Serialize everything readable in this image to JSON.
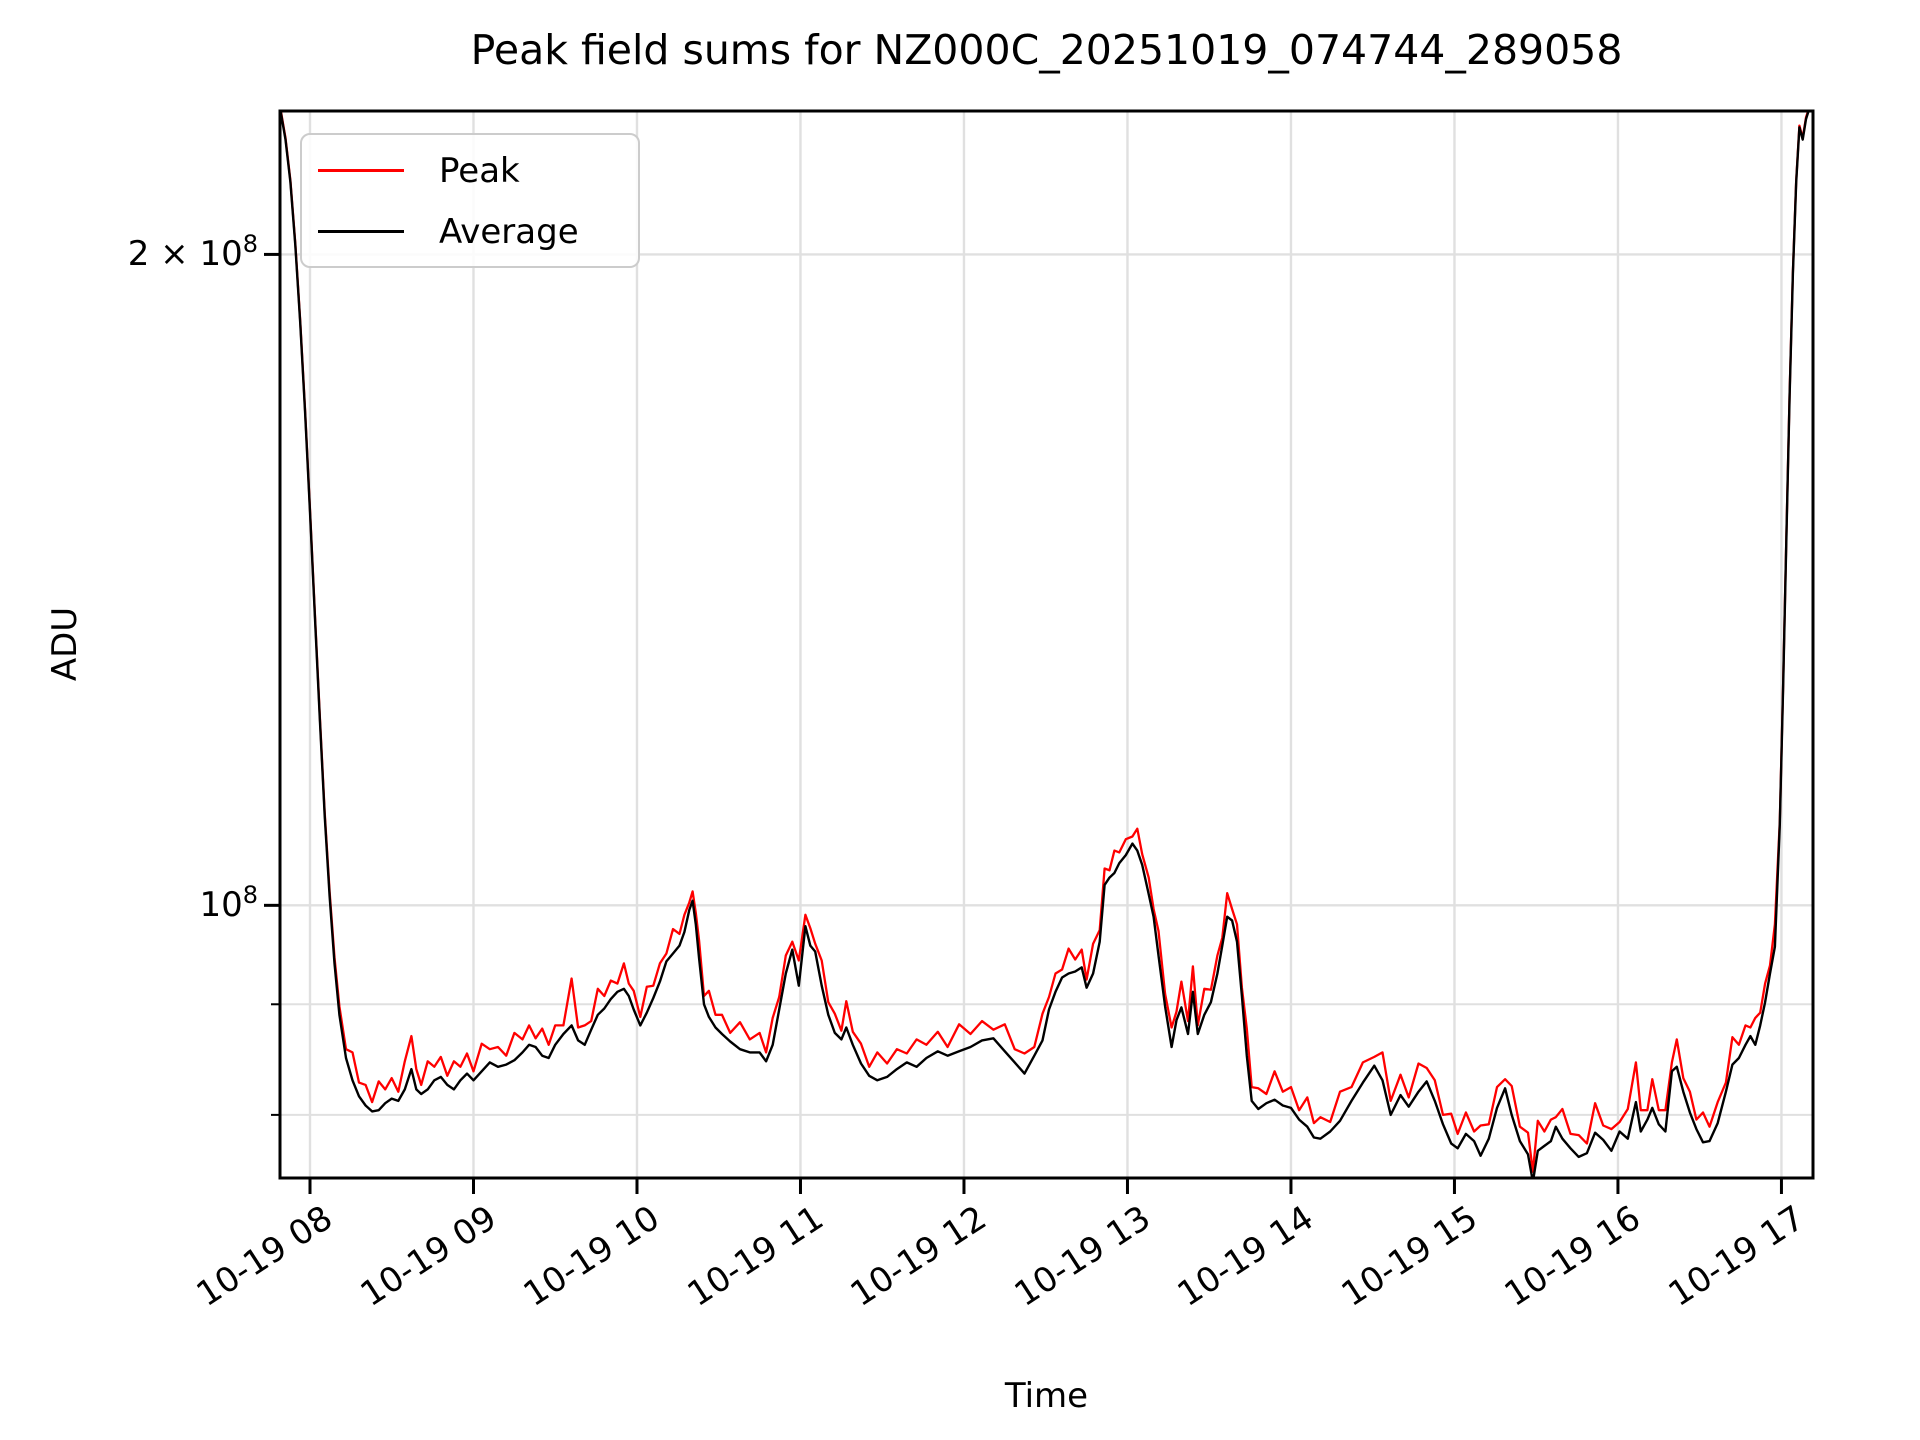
{
  "window": {
    "background": "#ffffff"
  },
  "chart_data": {
    "type": "line",
    "title": "Peak field sums for NZ000C_20251019_074744_289058",
    "xlabel": "Time",
    "ylabel": "ADU",
    "yscale": "log",
    "grid": "both",
    "grid_color": "#e0e0e0",
    "axis_color": "#000000",
    "legend_position": "upper left",
    "xlim_hours": [
      7.8165,
      17.193
    ],
    "ylim": [
      74800000,
      233000000
    ],
    "unit_multiplier": 10000000,
    "x_ticks": [
      {
        "hour": 8,
        "label": "10-19 08"
      },
      {
        "hour": 9,
        "label": "10-19 09"
      },
      {
        "hour": 10,
        "label": "10-19 10"
      },
      {
        "hour": 11,
        "label": "10-19 11"
      },
      {
        "hour": 12,
        "label": "10-19 12"
      },
      {
        "hour": 13,
        "label": "10-19 13"
      },
      {
        "hour": 14,
        "label": "10-19 14"
      },
      {
        "hour": 15,
        "label": "10-19 15"
      },
      {
        "hour": 16,
        "label": "10-19 16"
      },
      {
        "hour": 17,
        "label": "10-19 17"
      }
    ],
    "y_ticks_major": [
      {
        "value": 200000000,
        "mantissa": "2 × 10",
        "exponent": "8"
      },
      {
        "value": 100000000,
        "mantissa": "10",
        "exponent": "8"
      }
    ],
    "y_ticks_minor": [
      90000000,
      80000000
    ],
    "series_meta": [
      {
        "name": "Peak",
        "color": "#ff0000",
        "points_column": 2
      },
      {
        "name": "Average",
        "color": "#000000",
        "points_column": 1
      }
    ],
    "columns": [
      "hour",
      "average_e7_ADU",
      "peak_e7_ADU"
    ],
    "points": [
      [
        7.8,
        23.35,
        23.39
      ],
      [
        7.82,
        23.3,
        23.34
      ],
      [
        7.85,
        22.6,
        22.64
      ],
      [
        7.88,
        21.6,
        21.64
      ],
      [
        7.91,
        20.2,
        20.24
      ],
      [
        7.94,
        18.6,
        18.64
      ],
      [
        7.97,
        16.9,
        16.94
      ],
      [
        8.0,
        15.2,
        15.24
      ],
      [
        8.03,
        13.6,
        13.64
      ],
      [
        8.06,
        12.2,
        12.24
      ],
      [
        8.09,
        11.0,
        11.04
      ],
      [
        8.12,
        10.1,
        10.15
      ],
      [
        8.15,
        9.4,
        9.46
      ],
      [
        8.18,
        8.9,
        8.98
      ],
      [
        8.22,
        8.5,
        8.58
      ],
      [
        8.26,
        8.3,
        8.55
      ],
      [
        8.3,
        8.16,
        8.28
      ],
      [
        8.34,
        8.08,
        8.26
      ],
      [
        8.38,
        8.03,
        8.11
      ],
      [
        8.42,
        8.04,
        8.29
      ],
      [
        8.46,
        8.1,
        8.22
      ],
      [
        8.5,
        8.14,
        8.32
      ],
      [
        8.54,
        8.12,
        8.2
      ],
      [
        8.58,
        8.22,
        8.47
      ],
      [
        8.62,
        8.4,
        8.7
      ],
      [
        8.65,
        8.22,
        8.4
      ],
      [
        8.68,
        8.18,
        8.26
      ],
      [
        8.72,
        8.22,
        8.47
      ],
      [
        8.76,
        8.3,
        8.42
      ],
      [
        8.8,
        8.33,
        8.51
      ],
      [
        8.84,
        8.26,
        8.34
      ],
      [
        8.88,
        8.22,
        8.47
      ],
      [
        8.92,
        8.3,
        8.42
      ],
      [
        8.96,
        8.36,
        8.54
      ],
      [
        9.0,
        8.3,
        8.38
      ],
      [
        9.05,
        8.38,
        8.63
      ],
      [
        9.1,
        8.46,
        8.58
      ],
      [
        9.15,
        8.42,
        8.6
      ],
      [
        9.2,
        8.44,
        8.52
      ],
      [
        9.25,
        8.48,
        8.73
      ],
      [
        9.3,
        8.55,
        8.67
      ],
      [
        9.34,
        8.62,
        8.8
      ],
      [
        9.38,
        8.6,
        8.68
      ],
      [
        9.42,
        8.52,
        8.77
      ],
      [
        9.46,
        8.5,
        8.62
      ],
      [
        9.5,
        8.62,
        8.8
      ],
      [
        9.55,
        8.72,
        8.8
      ],
      [
        9.6,
        8.8,
        9.25
      ],
      [
        9.64,
        8.66,
        8.78
      ],
      [
        9.68,
        8.62,
        8.8
      ],
      [
        9.72,
        8.76,
        8.84
      ],
      [
        9.76,
        8.9,
        9.15
      ],
      [
        9.8,
        8.96,
        9.08
      ],
      [
        9.84,
        9.05,
        9.23
      ],
      [
        9.88,
        9.12,
        9.2
      ],
      [
        9.92,
        9.15,
        9.4
      ],
      [
        9.95,
        9.08,
        9.2
      ],
      [
        9.98,
        8.95,
        9.13
      ],
      [
        10.02,
        8.8,
        8.88
      ],
      [
        10.06,
        8.92,
        9.17
      ],
      [
        10.1,
        9.06,
        9.18
      ],
      [
        10.14,
        9.22,
        9.4
      ],
      [
        10.18,
        9.42,
        9.5
      ],
      [
        10.22,
        9.5,
        9.75
      ],
      [
        10.26,
        9.58,
        9.7
      ],
      [
        10.29,
        9.72,
        9.9
      ],
      [
        10.32,
        9.95,
        10.03
      ],
      [
        10.34,
        10.05,
        10.15
      ],
      [
        10.36,
        9.8,
        9.92
      ],
      [
        10.38,
        9.45,
        9.63
      ],
      [
        10.41,
        9.0,
        9.08
      ],
      [
        10.44,
        8.88,
        9.13
      ],
      [
        10.48,
        8.78,
        8.9
      ],
      [
        10.52,
        8.72,
        8.9
      ],
      [
        10.57,
        8.65,
        8.73
      ],
      [
        10.63,
        8.58,
        8.83
      ],
      [
        10.69,
        8.55,
        8.67
      ],
      [
        10.75,
        8.55,
        8.73
      ],
      [
        10.79,
        8.47,
        8.55
      ],
      [
        10.83,
        8.62,
        8.87
      ],
      [
        10.87,
        8.95,
        9.07
      ],
      [
        10.91,
        9.3,
        9.48
      ],
      [
        10.95,
        9.54,
        9.62
      ],
      [
        10.99,
        9.18,
        9.43
      ],
      [
        11.03,
        9.78,
        9.9
      ],
      [
        11.06,
        9.58,
        9.76
      ],
      [
        11.09,
        9.52,
        9.6
      ],
      [
        11.13,
        9.18,
        9.43
      ],
      [
        11.17,
        8.9,
        9.02
      ],
      [
        11.21,
        8.73,
        8.91
      ],
      [
        11.25,
        8.67,
        8.75
      ],
      [
        11.28,
        8.78,
        9.03
      ],
      [
        11.32,
        8.62,
        8.74
      ],
      [
        11.37,
        8.45,
        8.63
      ],
      [
        11.42,
        8.34,
        8.42
      ],
      [
        11.47,
        8.3,
        8.55
      ],
      [
        11.53,
        8.33,
        8.45
      ],
      [
        11.59,
        8.4,
        8.58
      ],
      [
        11.65,
        8.46,
        8.54
      ],
      [
        11.71,
        8.42,
        8.67
      ],
      [
        11.77,
        8.5,
        8.62
      ],
      [
        11.84,
        8.56,
        8.74
      ],
      [
        11.9,
        8.52,
        8.6
      ],
      [
        11.97,
        8.56,
        8.81
      ],
      [
        12.04,
        8.6,
        8.72
      ],
      [
        12.11,
        8.66,
        8.84
      ],
      [
        12.18,
        8.68,
        8.76
      ],
      [
        12.25,
        8.56,
        8.81
      ],
      [
        12.31,
        8.46,
        8.58
      ],
      [
        12.37,
        8.36,
        8.54
      ],
      [
        12.43,
        8.52,
        8.6
      ],
      [
        12.48,
        8.66,
        8.91
      ],
      [
        12.52,
        8.95,
        9.07
      ],
      [
        12.56,
        9.12,
        9.3
      ],
      [
        12.6,
        9.26,
        9.34
      ],
      [
        12.64,
        9.3,
        9.55
      ],
      [
        12.68,
        9.32,
        9.44
      ],
      [
        12.72,
        9.36,
        9.54
      ],
      [
        12.75,
        9.16,
        9.24
      ],
      [
        12.79,
        9.3,
        9.6
      ],
      [
        12.83,
        9.62,
        9.74
      ],
      [
        12.86,
        10.22,
        10.4
      ],
      [
        12.89,
        10.3,
        10.38
      ],
      [
        12.92,
        10.35,
        10.6
      ],
      [
        12.95,
        10.46,
        10.58
      ],
      [
        12.99,
        10.55,
        10.73
      ],
      [
        13.03,
        10.68,
        10.76
      ],
      [
        13.06,
        10.6,
        10.85
      ],
      [
        13.09,
        10.44,
        10.56
      ],
      [
        13.13,
        10.12,
        10.3
      ],
      [
        13.16,
        9.88,
        9.96
      ],
      [
        13.19,
        9.48,
        9.73
      ],
      [
        13.23,
        8.98,
        9.1
      ],
      [
        13.27,
        8.6,
        8.78
      ],
      [
        13.3,
        8.85,
        8.93
      ],
      [
        13.33,
        8.97,
        9.22
      ],
      [
        13.37,
        8.72,
        8.84
      ],
      [
        13.4,
        9.12,
        9.37
      ],
      [
        13.43,
        8.72,
        8.8
      ],
      [
        13.47,
        8.9,
        9.15
      ],
      [
        13.51,
        9.02,
        9.14
      ],
      [
        13.55,
        9.3,
        9.48
      ],
      [
        13.58,
        9.58,
        9.66
      ],
      [
        13.61,
        9.88,
        10.13
      ],
      [
        13.64,
        9.84,
        9.96
      ],
      [
        13.67,
        9.62,
        9.8
      ],
      [
        13.7,
        9.08,
        9.16
      ],
      [
        13.73,
        8.52,
        8.77
      ],
      [
        13.76,
        8.12,
        8.24
      ],
      [
        13.8,
        8.05,
        8.23
      ],
      [
        13.85,
        8.1,
        8.18
      ],
      [
        13.9,
        8.13,
        8.38
      ],
      [
        13.95,
        8.08,
        8.2
      ],
      [
        14.0,
        8.06,
        8.24
      ],
      [
        14.05,
        7.96,
        8.04
      ],
      [
        14.1,
        7.9,
        8.15
      ],
      [
        14.14,
        7.81,
        7.93
      ],
      [
        14.18,
        7.8,
        7.98
      ],
      [
        14.24,
        7.86,
        7.94
      ],
      [
        14.3,
        7.95,
        8.2
      ],
      [
        14.37,
        8.12,
        8.24
      ],
      [
        14.44,
        8.28,
        8.46
      ],
      [
        14.51,
        8.43,
        8.51
      ],
      [
        14.56,
        8.3,
        8.55
      ],
      [
        14.61,
        8.0,
        8.12
      ],
      [
        14.67,
        8.17,
        8.35
      ],
      [
        14.72,
        8.07,
        8.15
      ],
      [
        14.78,
        8.2,
        8.45
      ],
      [
        14.83,
        8.29,
        8.41
      ],
      [
        14.88,
        8.12,
        8.3
      ],
      [
        14.93,
        7.92,
        8.0
      ],
      [
        14.98,
        7.76,
        8.01
      ],
      [
        15.02,
        7.72,
        7.84
      ],
      [
        15.07,
        7.84,
        8.02
      ],
      [
        15.12,
        7.78,
        7.86
      ],
      [
        15.16,
        7.66,
        7.91
      ],
      [
        15.21,
        7.8,
        7.92
      ],
      [
        15.26,
        8.06,
        8.24
      ],
      [
        15.31,
        8.23,
        8.31
      ],
      [
        15.35,
        8.0,
        8.25
      ],
      [
        15.4,
        7.78,
        7.9
      ],
      [
        15.45,
        7.67,
        7.85
      ],
      [
        15.48,
        7.45,
        7.53
      ],
      [
        15.51,
        7.7,
        7.95
      ],
      [
        15.55,
        7.74,
        7.86
      ],
      [
        15.59,
        7.78,
        7.96
      ],
      [
        15.62,
        7.9,
        7.98
      ],
      [
        15.66,
        7.8,
        8.05
      ],
      [
        15.71,
        7.72,
        7.84
      ],
      [
        15.76,
        7.65,
        7.83
      ],
      [
        15.81,
        7.68,
        7.76
      ],
      [
        15.86,
        7.85,
        8.1
      ],
      [
        15.91,
        7.79,
        7.91
      ],
      [
        15.96,
        7.7,
        7.88
      ],
      [
        16.01,
        7.86,
        7.94
      ],
      [
        16.06,
        7.8,
        8.05
      ],
      [
        16.11,
        8.11,
        8.46
      ],
      [
        16.14,
        7.86,
        8.04
      ],
      [
        16.18,
        7.96,
        8.04
      ],
      [
        16.21,
        8.06,
        8.31
      ],
      [
        16.25,
        7.92,
        8.04
      ],
      [
        16.29,
        7.86,
        8.04
      ],
      [
        16.33,
        8.38,
        8.46
      ],
      [
        16.36,
        8.42,
        8.67
      ],
      [
        16.4,
        8.2,
        8.32
      ],
      [
        16.44,
        8.02,
        8.2
      ],
      [
        16.48,
        7.88,
        7.96
      ],
      [
        16.52,
        7.77,
        8.02
      ],
      [
        16.56,
        7.78,
        7.9
      ],
      [
        16.61,
        7.93,
        8.11
      ],
      [
        16.66,
        8.2,
        8.28
      ],
      [
        16.7,
        8.44,
        8.69
      ],
      [
        16.74,
        8.5,
        8.62
      ],
      [
        16.78,
        8.62,
        8.8
      ],
      [
        16.81,
        8.7,
        8.78
      ],
      [
        16.84,
        8.62,
        8.87
      ],
      [
        16.87,
        8.8,
        8.92
      ],
      [
        16.9,
        9.02,
        9.2
      ],
      [
        16.93,
        9.3,
        9.38
      ],
      [
        16.96,
        9.57,
        9.8
      ],
      [
        16.99,
        10.9,
        10.94
      ],
      [
        17.01,
        12.6,
        12.64
      ],
      [
        17.03,
        14.8,
        14.84
      ],
      [
        17.05,
        17.2,
        17.24
      ],
      [
        17.07,
        19.6,
        19.64
      ],
      [
        17.09,
        21.6,
        21.64
      ],
      [
        17.11,
        22.9,
        22.94
      ],
      [
        17.13,
        22.6,
        22.64
      ],
      [
        17.15,
        23.1,
        23.14
      ],
      [
        17.17,
        23.35,
        23.39
      ],
      [
        17.19,
        23.4,
        23.44
      ]
    ]
  },
  "legend": {
    "items": [
      {
        "label": "Peak",
        "color": "#ff0000"
      },
      {
        "label": "Average",
        "color": "#000000"
      }
    ]
  }
}
